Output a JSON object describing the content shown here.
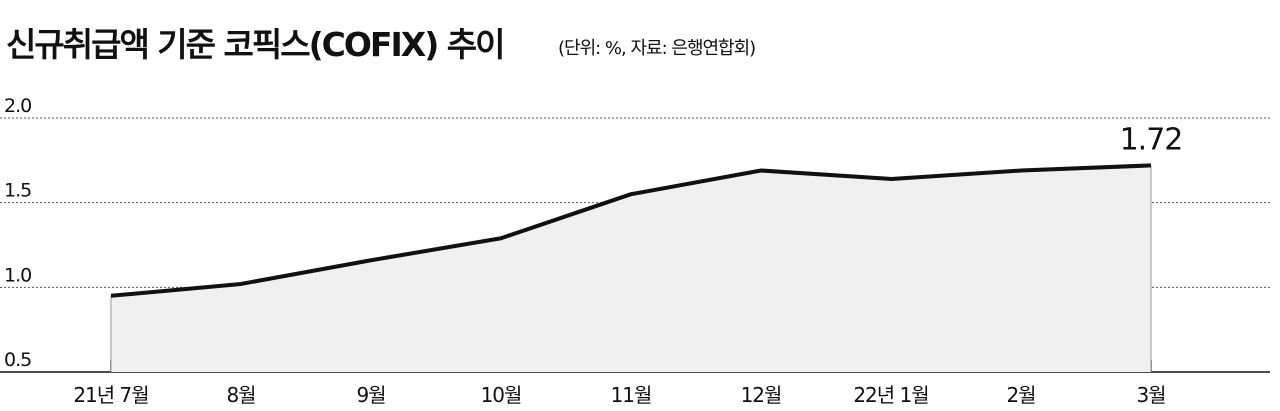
{
  "chart_data": {
    "type": "line",
    "title": "신규취급액 기준 코픽스(COFIX) 추이",
    "subtitle": "(단위: %, 자료: 은행연합회)",
    "categories": [
      "21년 7월",
      "8월",
      "9월",
      "10월",
      "11월",
      "12월",
      "22년 1월",
      "2월",
      "3월"
    ],
    "values": [
      0.95,
      1.02,
      1.16,
      1.29,
      1.55,
      1.69,
      1.64,
      1.69,
      1.72
    ],
    "color": "#111111",
    "ylim": [
      0.5,
      2.0
    ],
    "yticks": [
      {
        "value": 0.5,
        "label": "0.5"
      },
      {
        "value": 1.0,
        "label": "1.0"
      },
      {
        "value": 1.5,
        "label": "1.5"
      },
      {
        "value": 2.0,
        "label": "2.0"
      }
    ],
    "grid": true
  }
}
